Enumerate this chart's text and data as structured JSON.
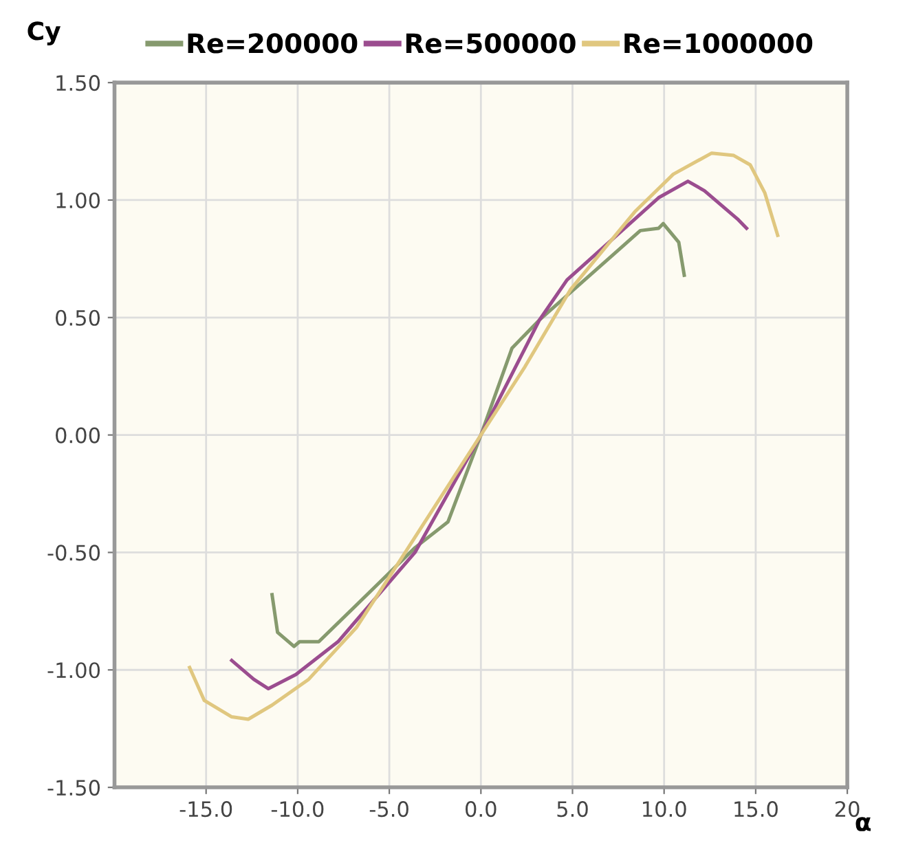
{
  "chart_data": {
    "type": "line",
    "xlabel": "α",
    "ylabel": "Cy",
    "xlim": [
      -20,
      20
    ],
    "xticks": [
      {
        "value": -15,
        "label": "-15.0"
      },
      {
        "value": -10,
        "label": "-10.0"
      },
      {
        "value": -5,
        "label": "-5.0"
      },
      {
        "value": 0,
        "label": "0.0"
      },
      {
        "value": 5,
        "label": "5.0"
      },
      {
        "value": 10,
        "label": "10.0"
      },
      {
        "value": 15,
        "label": "15.0"
      },
      20
    ],
    "ylim": [
      -1.5,
      1.5
    ],
    "yticks": [
      {
        "value": -1.5,
        "label": "-1.50"
      },
      {
        "value": -1.0,
        "label": "-1.00"
      },
      {
        "value": -0.5,
        "label": "-0.50"
      },
      {
        "value": 0,
        "label": "0.00"
      },
      {
        "value": 0.5,
        "label": "0.50"
      },
      {
        "value": 1.0,
        "label": "1.00"
      },
      {
        "value": 1.5,
        "label": "1.50"
      }
    ],
    "grid": true,
    "legend": "top",
    "marker": "none",
    "line_style": "solid",
    "series": [
      {
        "name": "Re=200000",
        "color": "#869a6e",
        "x": [
          -11.4,
          -11.1,
          -10.2,
          -9.9,
          -8.85,
          -5.3,
          -3.6,
          -1.8,
          0,
          1.7,
          3.2,
          7.4,
          8.7,
          9.7,
          9.95,
          10.8,
          11.1
        ],
        "values": [
          -0.68,
          -0.84,
          -0.9,
          -0.88,
          -0.88,
          -0.61,
          -0.48,
          -0.37,
          0,
          0.37,
          0.49,
          0.78,
          0.87,
          0.88,
          0.9,
          0.82,
          0.68
        ]
      },
      {
        "name": "Re=500000",
        "color": "#9b4d8f",
        "x": [
          -13.6,
          -12.4,
          -11.6,
          -10.1,
          -7.8,
          -3.6,
          0,
          3.2,
          4.7,
          9.7,
          11.3,
          12.2,
          14.0,
          14.5
        ],
        "values": [
          -0.96,
          -1.04,
          -1.08,
          -1.02,
          -0.88,
          -0.5,
          0,
          0.49,
          0.66,
          1.01,
          1.08,
          1.04,
          0.92,
          0.88
        ]
      },
      {
        "name": "Re=1000000",
        "color": "#e0c77f",
        "x": [
          -15.9,
          -15.1,
          -13.6,
          -12.7,
          -11.4,
          -9.4,
          -6.8,
          -4.3,
          0,
          2.4,
          4.9,
          8.4,
          10.5,
          12.6,
          13.8,
          14.7,
          15.5,
          16.2
        ],
        "values": [
          -0.99,
          -1.13,
          -1.2,
          -1.21,
          -1.15,
          -1.04,
          -0.82,
          -0.52,
          0,
          0.29,
          0.62,
          0.95,
          1.11,
          1.2,
          1.19,
          1.15,
          1.03,
          0.85
        ]
      }
    ]
  }
}
